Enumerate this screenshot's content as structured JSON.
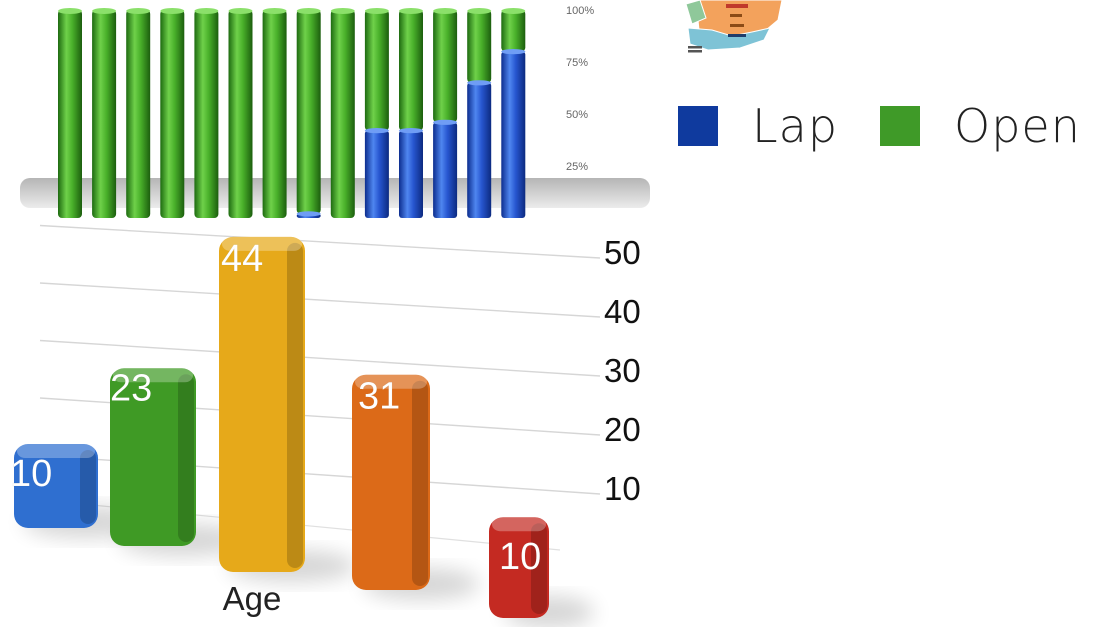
{
  "chart_data": [
    {
      "type": "bar",
      "stacked": true,
      "percent_scale": true,
      "series": [
        {
          "name": "Lap",
          "color": "#1e49c8",
          "values": [
            0,
            0,
            0,
            0,
            0,
            0,
            0,
            2,
            0,
            42,
            42,
            46,
            65,
            80
          ]
        },
        {
          "name": "Open",
          "color": "#3eaa1e",
          "values": [
            100,
            100,
            100,
            100,
            100,
            100,
            100,
            98,
            100,
            58,
            58,
            54,
            35,
            20
          ]
        }
      ],
      "y_ticks": [
        "25%",
        "50%",
        "75%",
        "100%"
      ],
      "ylim": [
        0,
        100
      ],
      "legend": {
        "position": "right",
        "items": [
          {
            "label": "Lap",
            "color": "#0f3a9e"
          },
          {
            "label": "Open",
            "color": "#3f9a28"
          }
        ]
      }
    },
    {
      "type": "bar",
      "xlabel": "Age",
      "values": [
        10,
        23,
        44,
        31,
        10
      ],
      "data_labels": [
        "10",
        "23",
        "44",
        "31",
        "10"
      ],
      "colors": [
        "#2f6fd0",
        "#3f9a25",
        "#e6a91a",
        "#dc6a18",
        "#c42a22"
      ],
      "y_ticks": [
        "10",
        "20",
        "30",
        "40",
        "50"
      ],
      "ylim": [
        0,
        50
      ],
      "grid": true
    }
  ],
  "map_thumbnail": {
    "icon": "map-fragment-icon"
  }
}
